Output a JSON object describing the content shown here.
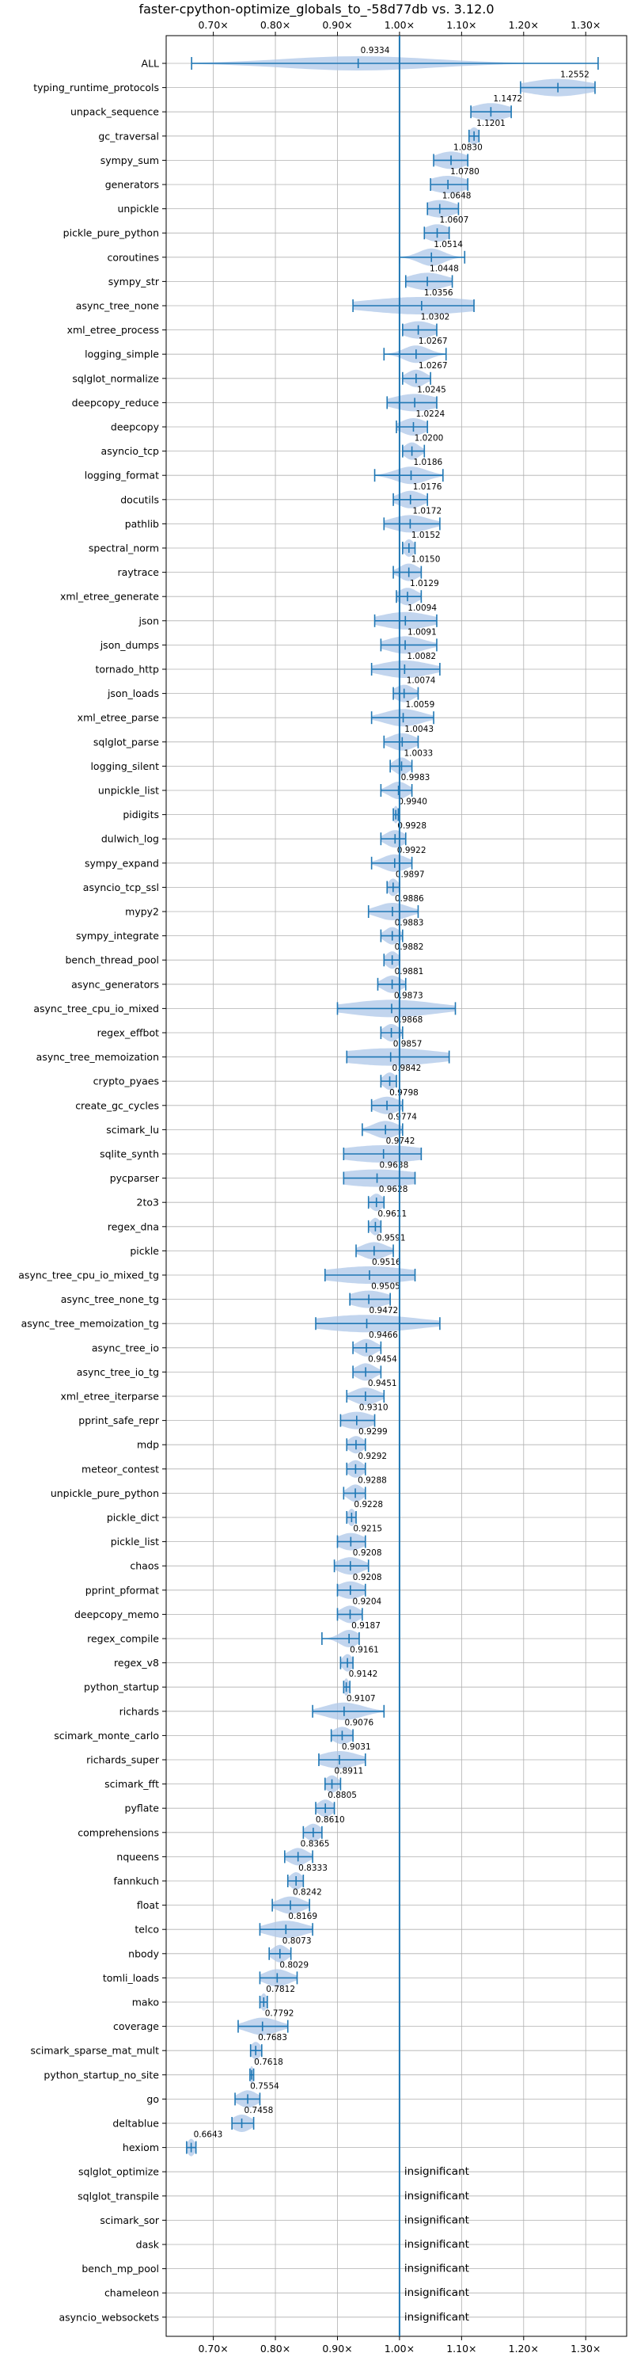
{
  "chart_data": {
    "type": "violin",
    "title": "faster-cpython-optimize_globals_to_-58d77db vs. 3.12.0",
    "xlabel": "",
    "ylabel": "",
    "xlim": [
      0.624,
      1.366
    ],
    "x_ticks": [
      0.7,
      0.8,
      0.9,
      1.0,
      1.1,
      1.2,
      1.3
    ],
    "x_tick_labels": [
      "0.70×",
      "0.80×",
      "0.90×",
      "1.00×",
      "1.10×",
      "1.20×",
      "1.30×"
    ],
    "x_ticks_top_and_bottom": true,
    "grid": true,
    "reference_line": 1.0,
    "colors": {
      "violin": "#1f77b4",
      "violin_fill": "#aec7e8",
      "grid": "#b0b0b0",
      "axis": "#000000"
    },
    "benchmarks": [
      {
        "name": "ALL",
        "value": 0.9334,
        "label": "0.9334",
        "min": 0.665,
        "max": 1.32,
        "spread": 0.12
      },
      {
        "name": "typing_runtime_protocols",
        "value": 1.2552,
        "label": "1.2552",
        "min": 1.195,
        "max": 1.315,
        "spread": 0.05
      },
      {
        "name": "unpack_sequence",
        "value": 1.1472,
        "label": "1.1472",
        "min": 1.115,
        "max": 1.18,
        "spread": 0.03
      },
      {
        "name": "gc_traversal",
        "value": 1.1201,
        "label": "1.1201",
        "min": 1.112,
        "max": 1.128,
        "spread": 0.008
      },
      {
        "name": "sympy_sum",
        "value": 1.083,
        "label": "1.0830",
        "min": 1.055,
        "max": 1.11,
        "spread": 0.025
      },
      {
        "name": "generators",
        "value": 1.078,
        "label": "1.0780",
        "min": 1.05,
        "max": 1.11,
        "spread": 0.03
      },
      {
        "name": "unpickle",
        "value": 1.0648,
        "label": "1.0648",
        "min": 1.045,
        "max": 1.095,
        "spread": 0.025
      },
      {
        "name": "pickle_pure_python",
        "value": 1.0607,
        "label": "1.0607",
        "min": 1.04,
        "max": 1.08,
        "spread": 0.02
      },
      {
        "name": "coroutines",
        "value": 1.0514,
        "label": "1.0514",
        "min": 1.0,
        "max": 1.105,
        "spread": 0.02
      },
      {
        "name": "sympy_str",
        "value": 1.0448,
        "label": "1.0448",
        "min": 1.01,
        "max": 1.085,
        "spread": 0.03
      },
      {
        "name": "async_tree_none",
        "value": 1.0356,
        "label": "1.0356",
        "min": 0.925,
        "max": 1.12,
        "spread": 0.09
      },
      {
        "name": "xml_etree_process",
        "value": 1.0302,
        "label": "1.0302",
        "min": 1.005,
        "max": 1.06,
        "spread": 0.025
      },
      {
        "name": "logging_simple",
        "value": 1.0267,
        "label": "1.0267",
        "min": 0.975,
        "max": 1.075,
        "spread": 0.02
      },
      {
        "name": "sqlglot_normalize",
        "value": 1.0267,
        "label": "1.0267",
        "min": 1.005,
        "max": 1.05,
        "spread": 0.015
      },
      {
        "name": "deepcopy_reduce",
        "value": 1.0245,
        "label": "1.0245",
        "min": 0.98,
        "max": 1.06,
        "spread": 0.035
      },
      {
        "name": "deepcopy",
        "value": 1.0224,
        "label": "1.0224",
        "min": 0.995,
        "max": 1.045,
        "spread": 0.02
      },
      {
        "name": "asyncio_tcp",
        "value": 1.02,
        "label": "1.0200",
        "min": 1.005,
        "max": 1.04,
        "spread": 0.012
      },
      {
        "name": "logging_format",
        "value": 1.0186,
        "label": "1.0186",
        "min": 0.96,
        "max": 1.07,
        "spread": 0.025
      },
      {
        "name": "docutils",
        "value": 1.0176,
        "label": "1.0176",
        "min": 0.99,
        "max": 1.045,
        "spread": 0.02
      },
      {
        "name": "pathlib",
        "value": 1.0172,
        "label": "1.0172",
        "min": 0.975,
        "max": 1.065,
        "spread": 0.03
      },
      {
        "name": "spectral_norm",
        "value": 1.0152,
        "label": "1.0152",
        "min": 1.005,
        "max": 1.025,
        "spread": 0.008
      },
      {
        "name": "raytrace",
        "value": 1.015,
        "label": "1.0150",
        "min": 0.99,
        "max": 1.035,
        "spread": 0.015
      },
      {
        "name": "xml_etree_generate",
        "value": 1.0129,
        "label": "1.0129",
        "min": 0.995,
        "max": 1.035,
        "spread": 0.015
      },
      {
        "name": "json",
        "value": 1.0094,
        "label": "1.0094",
        "min": 0.96,
        "max": 1.06,
        "spread": 0.04
      },
      {
        "name": "json_dumps",
        "value": 1.0091,
        "label": "1.0091",
        "min": 0.97,
        "max": 1.06,
        "spread": 0.03
      },
      {
        "name": "tornado_http",
        "value": 1.0082,
        "label": "1.0082",
        "min": 0.955,
        "max": 1.065,
        "spread": 0.04
      },
      {
        "name": "json_loads",
        "value": 1.0074,
        "label": "1.0074",
        "min": 0.99,
        "max": 1.03,
        "spread": 0.015
      },
      {
        "name": "xml_etree_parse",
        "value": 1.0059,
        "label": "1.0059",
        "min": 0.955,
        "max": 1.055,
        "spread": 0.03
      },
      {
        "name": "sqlglot_parse",
        "value": 1.0043,
        "label": "1.0043",
        "min": 0.975,
        "max": 1.03,
        "spread": 0.02
      },
      {
        "name": "logging_silent",
        "value": 1.0033,
        "label": "1.0033",
        "min": 0.985,
        "max": 1.02,
        "spread": 0.012
      },
      {
        "name": "unpickle_list",
        "value": 0.9983,
        "label": "0.9983",
        "min": 0.97,
        "max": 1.02,
        "spread": 0.015
      },
      {
        "name": "pidigits",
        "value": 0.994,
        "label": "0.9940",
        "min": 0.99,
        "max": 0.998,
        "spread": 0.004
      },
      {
        "name": "dulwich_log",
        "value": 0.9928,
        "label": "0.9928",
        "min": 0.97,
        "max": 1.01,
        "spread": 0.015
      },
      {
        "name": "sympy_expand",
        "value": 0.9922,
        "label": "0.9922",
        "min": 0.955,
        "max": 1.02,
        "spread": 0.02
      },
      {
        "name": "asyncio_tcp_ssl",
        "value": 0.9897,
        "label": "0.9897",
        "min": 0.98,
        "max": 1.0,
        "spread": 0.008
      },
      {
        "name": "mypy2",
        "value": 0.9886,
        "label": "0.9886",
        "min": 0.95,
        "max": 1.03,
        "spread": 0.025
      },
      {
        "name": "sympy_integrate",
        "value": 0.9883,
        "label": "0.9883",
        "min": 0.97,
        "max": 1.005,
        "spread": 0.012
      },
      {
        "name": "bench_thread_pool",
        "value": 0.9882,
        "label": "0.9882",
        "min": 0.975,
        "max": 1.0,
        "spread": 0.01
      },
      {
        "name": "async_generators",
        "value": 0.9881,
        "label": "0.9881",
        "min": 0.965,
        "max": 1.01,
        "spread": 0.015
      },
      {
        "name": "async_tree_cpu_io_mixed",
        "value": 0.9873,
        "label": "0.9873",
        "min": 0.9,
        "max": 1.09,
        "spread": 0.07
      },
      {
        "name": "regex_effbot",
        "value": 0.9868,
        "label": "0.9868",
        "min": 0.97,
        "max": 1.005,
        "spread": 0.012
      },
      {
        "name": "async_tree_memoization",
        "value": 0.9857,
        "label": "0.9857",
        "min": 0.915,
        "max": 1.08,
        "spread": 0.08
      },
      {
        "name": "crypto_pyaes",
        "value": 0.9842,
        "label": "0.9842",
        "min": 0.97,
        "max": 0.995,
        "spread": 0.01
      },
      {
        "name": "create_gc_cycles",
        "value": 0.9798,
        "label": "0.9798",
        "min": 0.955,
        "max": 1.005,
        "spread": 0.02
      },
      {
        "name": "scimark_lu",
        "value": 0.9774,
        "label": "0.9774",
        "min": 0.94,
        "max": 1.005,
        "spread": 0.02
      },
      {
        "name": "sqlite_synth",
        "value": 0.9742,
        "label": "0.9742",
        "min": 0.91,
        "max": 1.035,
        "spread": 0.07
      },
      {
        "name": "pycparser",
        "value": 0.9638,
        "label": "0.9638",
        "min": 0.91,
        "max": 1.025,
        "spread": 0.07
      },
      {
        "name": "2to3",
        "value": 0.9628,
        "label": "0.9628",
        "min": 0.95,
        "max": 0.975,
        "spread": 0.01
      },
      {
        "name": "regex_dna",
        "value": 0.9611,
        "label": "0.9611",
        "min": 0.95,
        "max": 0.97,
        "spread": 0.008
      },
      {
        "name": "pickle",
        "value": 0.9591,
        "label": "0.9591",
        "min": 0.93,
        "max": 0.99,
        "spread": 0.02
      },
      {
        "name": "async_tree_cpu_io_mixed_tg",
        "value": 0.9516,
        "label": "0.9516",
        "min": 0.88,
        "max": 1.025,
        "spread": 0.07
      },
      {
        "name": "async_tree_none_tg",
        "value": 0.9505,
        "label": "0.9505",
        "min": 0.92,
        "max": 0.985,
        "spread": 0.03
      },
      {
        "name": "async_tree_memoization_tg",
        "value": 0.9472,
        "label": "0.9472",
        "min": 0.865,
        "max": 1.065,
        "spread": 0.08
      },
      {
        "name": "async_tree_io",
        "value": 0.9466,
        "label": "0.9466",
        "min": 0.925,
        "max": 0.97,
        "spread": 0.015
      },
      {
        "name": "async_tree_io_tg",
        "value": 0.9454,
        "label": "0.9454",
        "min": 0.925,
        "max": 0.97,
        "spread": 0.015
      },
      {
        "name": "xml_etree_iterparse",
        "value": 0.9451,
        "label": "0.9451",
        "min": 0.915,
        "max": 0.975,
        "spread": 0.02
      },
      {
        "name": "pprint_safe_repr",
        "value": 0.931,
        "label": "0.9310",
        "min": 0.905,
        "max": 0.96,
        "spread": 0.025
      },
      {
        "name": "mdp",
        "value": 0.9299,
        "label": "0.9299",
        "min": 0.915,
        "max": 0.945,
        "spread": 0.012
      },
      {
        "name": "meteor_contest",
        "value": 0.9292,
        "label": "0.9292",
        "min": 0.915,
        "max": 0.945,
        "spread": 0.012
      },
      {
        "name": "unpickle_pure_python",
        "value": 0.9288,
        "label": "0.9288",
        "min": 0.91,
        "max": 0.945,
        "spread": 0.012
      },
      {
        "name": "pickle_dict",
        "value": 0.9228,
        "label": "0.9228",
        "min": 0.915,
        "max": 0.93,
        "spread": 0.006
      },
      {
        "name": "pickle_list",
        "value": 0.9215,
        "label": "0.9215",
        "min": 0.9,
        "max": 0.945,
        "spread": 0.02
      },
      {
        "name": "chaos",
        "value": 0.9208,
        "label": "0.9208",
        "min": 0.895,
        "max": 0.95,
        "spread": 0.02
      },
      {
        "name": "pprint_pformat",
        "value": 0.9208,
        "label": "0.9208",
        "min": 0.9,
        "max": 0.945,
        "spread": 0.02
      },
      {
        "name": "deepcopy_memo",
        "value": 0.9204,
        "label": "0.9204",
        "min": 0.9,
        "max": 0.94,
        "spread": 0.015
      },
      {
        "name": "regex_compile",
        "value": 0.9187,
        "label": "0.9187",
        "min": 0.875,
        "max": 0.935,
        "spread": 0.015
      },
      {
        "name": "regex_v8",
        "value": 0.9161,
        "label": "0.9161",
        "min": 0.905,
        "max": 0.925,
        "spread": 0.008
      },
      {
        "name": "python_startup",
        "value": 0.9142,
        "label": "0.9142",
        "min": 0.91,
        "max": 0.92,
        "spread": 0.004
      },
      {
        "name": "richards",
        "value": 0.9107,
        "label": "0.9107",
        "min": 0.86,
        "max": 0.975,
        "spread": 0.03
      },
      {
        "name": "scimark_monte_carlo",
        "value": 0.9076,
        "label": "0.9076",
        "min": 0.89,
        "max": 0.925,
        "spread": 0.015
      },
      {
        "name": "richards_super",
        "value": 0.9031,
        "label": "0.9031",
        "min": 0.87,
        "max": 0.945,
        "spread": 0.03
      },
      {
        "name": "scimark_fft",
        "value": 0.8911,
        "label": "0.8911",
        "min": 0.88,
        "max": 0.905,
        "spread": 0.01
      },
      {
        "name": "pyflate",
        "value": 0.8805,
        "label": "0.8805",
        "min": 0.865,
        "max": 0.895,
        "spread": 0.012
      },
      {
        "name": "comprehensions",
        "value": 0.861,
        "label": "0.8610",
        "min": 0.845,
        "max": 0.875,
        "spread": 0.012
      },
      {
        "name": "nqueens",
        "value": 0.8365,
        "label": "0.8365",
        "min": 0.815,
        "max": 0.86,
        "spread": 0.015
      },
      {
        "name": "fannkuch",
        "value": 0.8333,
        "label": "0.8333",
        "min": 0.82,
        "max": 0.845,
        "spread": 0.01
      },
      {
        "name": "float",
        "value": 0.8242,
        "label": "0.8242",
        "min": 0.795,
        "max": 0.855,
        "spread": 0.02
      },
      {
        "name": "telco",
        "value": 0.8169,
        "label": "0.8169",
        "min": 0.775,
        "max": 0.86,
        "spread": 0.03
      },
      {
        "name": "nbody",
        "value": 0.8073,
        "label": "0.8073",
        "min": 0.79,
        "max": 0.825,
        "spread": 0.012
      },
      {
        "name": "tomli_loads",
        "value": 0.8029,
        "label": "0.8029",
        "min": 0.775,
        "max": 0.835,
        "spread": 0.02
      },
      {
        "name": "mako",
        "value": 0.7812,
        "label": "0.7812",
        "min": 0.775,
        "max": 0.787,
        "spread": 0.005
      },
      {
        "name": "coverage",
        "value": 0.7792,
        "label": "0.7792",
        "min": 0.74,
        "max": 0.82,
        "spread": 0.025
      },
      {
        "name": "scimark_sparse_mat_mult",
        "value": 0.7683,
        "label": "0.7683",
        "min": 0.76,
        "max": 0.778,
        "spread": 0.008
      },
      {
        "name": "python_startup_no_site",
        "value": 0.7618,
        "label": "0.7618",
        "min": 0.759,
        "max": 0.765,
        "spread": 0.003
      },
      {
        "name": "go",
        "value": 0.7554,
        "label": "0.7554",
        "min": 0.735,
        "max": 0.775,
        "spread": 0.015
      },
      {
        "name": "deltablue",
        "value": 0.7458,
        "label": "0.7458",
        "min": 0.73,
        "max": 0.765,
        "spread": 0.015
      },
      {
        "name": "hexiom",
        "value": 0.6643,
        "label": "0.6643",
        "min": 0.657,
        "max": 0.672,
        "spread": 0.006
      },
      {
        "name": "sqlglot_optimize",
        "value": null,
        "label": "insignificant"
      },
      {
        "name": "sqlglot_transpile",
        "value": null,
        "label": "insignificant"
      },
      {
        "name": "scimark_sor",
        "value": null,
        "label": "insignificant"
      },
      {
        "name": "dask",
        "value": null,
        "label": "insignificant"
      },
      {
        "name": "bench_mp_pool",
        "value": null,
        "label": "insignificant"
      },
      {
        "name": "chameleon",
        "value": null,
        "label": "insignificant"
      },
      {
        "name": "asyncio_websockets",
        "value": null,
        "label": "insignificant"
      }
    ]
  }
}
